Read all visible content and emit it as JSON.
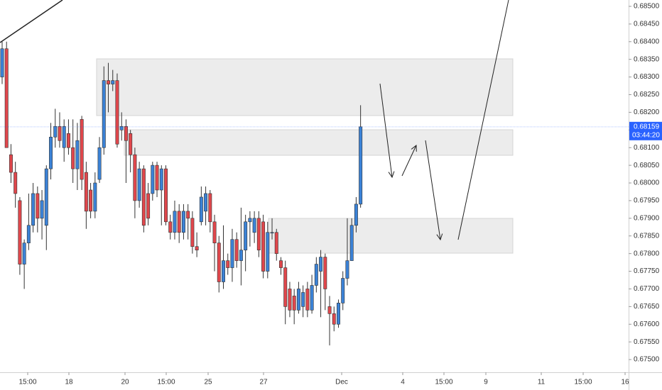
{
  "chart_data": {
    "type": "candlestick",
    "up_color": "#3b82d6",
    "down_color": "#e0474c",
    "x": [
      0,
      1,
      2,
      3,
      4,
      5,
      6,
      7,
      8,
      9,
      10,
      11,
      12,
      13,
      14,
      15,
      16,
      17,
      18,
      19,
      20,
      21,
      22,
      23,
      24,
      25,
      26,
      27,
      28,
      29,
      30,
      31,
      32,
      33,
      34,
      35,
      36,
      37,
      38,
      39,
      40,
      41,
      42,
      43,
      44,
      45,
      46,
      47,
      48,
      49,
      50,
      51,
      52,
      53,
      54,
      55,
      56,
      57,
      58,
      59,
      60,
      61,
      62,
      63,
      64,
      65,
      66,
      67,
      68,
      69,
      70,
      71,
      72,
      73,
      74,
      75,
      76,
      77,
      78,
      79,
      80,
      81
    ],
    "open": [
      0.683,
      0.6838,
      0.6808,
      0.6803,
      0.6795,
      0.6777,
      0.6783,
      0.6788,
      0.6797,
      0.679,
      0.6788,
      0.6804,
      0.6813,
      0.6816,
      0.681,
      0.6814,
      0.681,
      0.6804,
      0.6818,
      0.6803,
      0.6798,
      0.6792,
      0.6801,
      0.681,
      0.6829,
      0.6828,
      0.6829,
      0.6815,
      0.6816,
      0.6814,
      0.6808,
      0.6795,
      0.6804,
      0.6797,
      0.6797,
      0.6805,
      0.6798,
      0.6804,
      0.6789,
      0.6786,
      0.6792,
      0.6786,
      0.6792,
      0.679,
      0.6782,
      0.6789,
      0.6792,
      0.6797,
      0.6789,
      0.6783,
      0.6772,
      0.6778,
      0.6776,
      0.6784,
      0.6778,
      0.6781,
      0.6789,
      0.6786,
      0.679,
      0.6789,
      0.6775,
      0.6786,
      0.6786,
      0.6778,
      0.6776,
      0.677,
      0.6768,
      0.6764,
      0.6765,
      0.677,
      0.6764,
      0.6771,
      0.6775,
      0.6779,
      0.6765,
      0.6763,
      0.676,
      0.6766,
      0.6773,
      0.6778,
      0.6788,
      0.6794
    ],
    "high": [
      0.684,
      0.684,
      0.6811,
      0.6806,
      0.6796,
      0.6784,
      0.6797,
      0.68,
      0.6799,
      0.6798,
      0.6805,
      0.6817,
      0.6821,
      0.682,
      0.6818,
      0.6818,
      0.6818,
      0.6817,
      0.6819,
      0.6806,
      0.68,
      0.6803,
      0.6813,
      0.6833,
      0.6834,
      0.6832,
      0.6831,
      0.682,
      0.6818,
      0.6815,
      0.681,
      0.6806,
      0.6805,
      0.68,
      0.6806,
      0.6806,
      0.6805,
      0.6805,
      0.6791,
      0.6795,
      0.6794,
      0.6794,
      0.6794,
      0.6792,
      0.6786,
      0.6799,
      0.6799,
      0.6798,
      0.6791,
      0.6785,
      0.6788,
      0.678,
      0.6787,
      0.6786,
      0.6793,
      0.6791,
      0.6792,
      0.6792,
      0.6792,
      0.6791,
      0.6789,
      0.679,
      0.6787,
      0.6779,
      0.6778,
      0.6772,
      0.677,
      0.6772,
      0.6771,
      0.6772,
      0.6774,
      0.6779,
      0.6781,
      0.678,
      0.6768,
      0.6765,
      0.6767,
      0.6775,
      0.679,
      0.679,
      0.6796,
      0.6822
    ],
    "low": [
      0.6828,
      0.681,
      0.68,
      0.6793,
      0.6774,
      0.677,
      0.6781,
      0.6786,
      0.6786,
      0.6784,
      0.6781,
      0.6801,
      0.681,
      0.681,
      0.6806,
      0.6808,
      0.68,
      0.6798,
      0.6798,
      0.6787,
      0.679,
      0.679,
      0.68,
      0.6808,
      0.682,
      0.6826,
      0.681,
      0.6812,
      0.68,
      0.6803,
      0.679,
      0.6793,
      0.6786,
      0.6788,
      0.6795,
      0.6796,
      0.6788,
      0.6788,
      0.6784,
      0.6784,
      0.6783,
      0.6784,
      0.6784,
      0.678,
      0.6779,
      0.6788,
      0.6788,
      0.6786,
      0.6775,
      0.6769,
      0.677,
      0.6774,
      0.6772,
      0.6776,
      0.6771,
      0.6775,
      0.6782,
      0.6783,
      0.6779,
      0.6773,
      0.6773,
      0.6784,
      0.6778,
      0.6774,
      0.676,
      0.6762,
      0.676,
      0.6763,
      0.6762,
      0.6762,
      0.6763,
      0.6769,
      0.6762,
      0.6764,
      0.6754,
      0.6758,
      0.6759,
      0.6764,
      0.6771,
      0.6778,
      0.6786,
      0.6793
    ],
    "close": [
      0.6838,
      0.681,
      0.6803,
      0.6797,
      0.6777,
      0.6783,
      0.6788,
      0.6797,
      0.679,
      0.6795,
      0.6804,
      0.6813,
      0.6816,
      0.6812,
      0.6816,
      0.681,
      0.6804,
      0.6812,
      0.6801,
      0.6792,
      0.6792,
      0.68,
      0.681,
      0.6829,
      0.6828,
      0.6829,
      0.6811,
      0.6816,
      0.6812,
      0.6808,
      0.6795,
      0.6804,
      0.6788,
      0.679,
      0.6805,
      0.6798,
      0.6804,
      0.6789,
      0.6786,
      0.6792,
      0.6786,
      0.6792,
      0.679,
      0.6782,
      0.6781,
      0.6796,
      0.6797,
      0.6789,
      0.6783,
      0.6772,
      0.6778,
      0.6776,
      0.6784,
      0.6778,
      0.6781,
      0.6789,
      0.679,
      0.679,
      0.6781,
      0.6775,
      0.6786,
      0.6786,
      0.678,
      0.6776,
      0.6765,
      0.6764,
      0.6764,
      0.677,
      0.6769,
      0.6764,
      0.6771,
      0.6777,
      0.6779,
      0.677,
      0.6763,
      0.676,
      0.6766,
      0.6773,
      0.6778,
      0.6788,
      0.6794,
      0.68159
    ],
    "xlim": [
      -0.48,
      141.57
    ],
    "xticks": [
      {
        "value": 5.78,
        "label": "15:00"
      },
      {
        "value": 15.09,
        "label": "18"
      },
      {
        "value": 27.77,
        "label": "20"
      },
      {
        "value": 37.08,
        "label": "15:00"
      },
      {
        "value": 46.55,
        "label": "25"
      },
      {
        "value": 59.07,
        "label": "27"
      },
      {
        "value": 76.73,
        "label": "Dec"
      },
      {
        "value": 90.53,
        "label": "4"
      },
      {
        "value": 99.84,
        "label": "15:00"
      },
      {
        "value": 109.31,
        "label": "9"
      },
      {
        "value": 121.83,
        "label": "11"
      },
      {
        "value": 131.3,
        "label": "15:00"
      },
      {
        "value": 140.77,
        "label": "16"
      }
    ],
    "ylim": [
      0.67464,
      0.68518
    ],
    "yticks": [
      {
        "value": 0.675,
        "label": "0.67500"
      },
      {
        "value": 0.6755,
        "label": "0.67550"
      },
      {
        "value": 0.676,
        "label": "0.67600"
      },
      {
        "value": 0.6765,
        "label": "0.67650"
      },
      {
        "value": 0.677,
        "label": "0.67700"
      },
      {
        "value": 0.6775,
        "label": "0.67750"
      },
      {
        "value": 0.678,
        "label": "0.67800"
      },
      {
        "value": 0.6785,
        "label": "0.67850"
      },
      {
        "value": 0.679,
        "label": "0.67900"
      },
      {
        "value": 0.6795,
        "label": "0.67950"
      },
      {
        "value": 0.68,
        "label": "0.68000"
      },
      {
        "value": 0.6805,
        "label": "0.68050"
      },
      {
        "value": 0.681,
        "label": "0.68100"
      },
      {
        "value": 0.6815,
        "label": "0.68150"
      },
      {
        "value": 0.682,
        "label": "0.68200"
      },
      {
        "value": 0.6825,
        "label": "0.68250"
      },
      {
        "value": 0.683,
        "label": "0.68300"
      },
      {
        "value": 0.6835,
        "label": "0.68350"
      },
      {
        "value": 0.684,
        "label": "0.68400"
      },
      {
        "value": 0.6845,
        "label": "0.68450"
      },
      {
        "value": 0.685,
        "label": "0.68500"
      }
    ],
    "last_price": 0.68159,
    "countdown": "03:44:20",
    "last_price_color": "#2962ff"
  }
}
